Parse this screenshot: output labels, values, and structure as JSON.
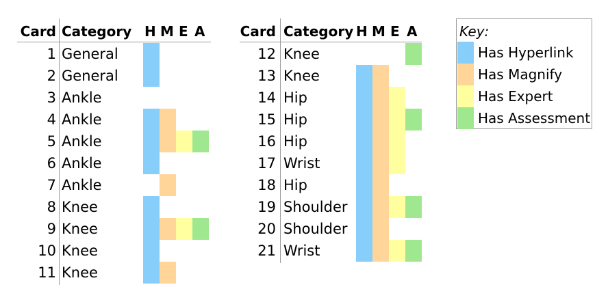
{
  "chart_data": {
    "type": "table",
    "headers": [
      "Card",
      "Category",
      "H",
      "M",
      "E",
      "A"
    ],
    "colors": {
      "H": "#87cefa",
      "M": "#ffd59a",
      "E": "#ffff9f",
      "A": "#a0e890"
    },
    "rows": [
      {
        "card": "1",
        "category": "General",
        "H": true,
        "M": false,
        "E": false,
        "A": false
      },
      {
        "card": "2",
        "category": "General",
        "H": true,
        "M": false,
        "E": false,
        "A": false
      },
      {
        "card": "3",
        "category": "Ankle",
        "H": false,
        "M": false,
        "E": false,
        "A": false
      },
      {
        "card": "4",
        "category": "Ankle",
        "H": true,
        "M": true,
        "E": false,
        "A": false
      },
      {
        "card": "5",
        "category": "Ankle",
        "H": true,
        "M": true,
        "E": true,
        "A": true
      },
      {
        "card": "6",
        "category": "Ankle",
        "H": true,
        "M": false,
        "E": false,
        "A": false
      },
      {
        "card": "7",
        "category": "Ankle",
        "H": false,
        "M": true,
        "E": false,
        "A": false
      },
      {
        "card": "8",
        "category": "Knee",
        "H": true,
        "M": false,
        "E": false,
        "A": false
      },
      {
        "card": "9",
        "category": "Knee",
        "H": true,
        "M": true,
        "E": true,
        "A": true
      },
      {
        "card": "10",
        "category": "Knee",
        "H": true,
        "M": false,
        "E": false,
        "A": false
      },
      {
        "card": "11",
        "category": "Knee",
        "H": true,
        "M": true,
        "E": false,
        "A": false
      },
      {
        "card": "12",
        "category": "Knee",
        "H": false,
        "M": false,
        "E": false,
        "A": true
      },
      {
        "card": "13",
        "category": "Knee",
        "H": true,
        "M": true,
        "E": false,
        "A": false
      },
      {
        "card": "14",
        "category": "Hip",
        "H": true,
        "M": true,
        "E": true,
        "A": false
      },
      {
        "card": "15",
        "category": "Hip",
        "H": true,
        "M": true,
        "E": true,
        "A": true
      },
      {
        "card": "16",
        "category": "Hip",
        "H": true,
        "M": true,
        "E": true,
        "A": false
      },
      {
        "card": "17",
        "category": "Wrist",
        "H": true,
        "M": true,
        "E": true,
        "A": false
      },
      {
        "card": "18",
        "category": "Hip",
        "H": true,
        "M": true,
        "E": false,
        "A": false
      },
      {
        "card": "19",
        "category": "Shoulder",
        "H": true,
        "M": true,
        "E": true,
        "A": true
      },
      {
        "card": "20",
        "category": "Shoulder",
        "H": true,
        "M": true,
        "E": false,
        "A": false
      },
      {
        "card": "21",
        "category": "Wrist",
        "H": true,
        "M": true,
        "E": true,
        "A": true
      }
    ],
    "key": {
      "title": "Key:",
      "items": [
        {
          "flag": "H",
          "label": "Has Hyperlink"
        },
        {
          "flag": "M",
          "label": "Has Magnify"
        },
        {
          "flag": "E",
          "label": "Has Expert"
        },
        {
          "flag": "A",
          "label": "Has Assessment"
        }
      ]
    }
  }
}
